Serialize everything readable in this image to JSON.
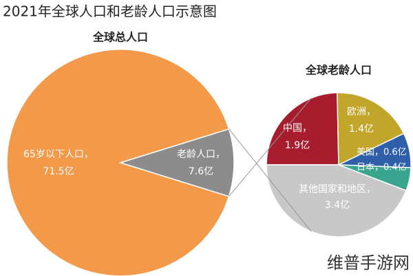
{
  "chart_data": [
    {
      "type": "pie",
      "title": "2021年全球人口和老龄人口示意图",
      "subtitle": "全球总人口",
      "categories": [
        "65岁以下人口，",
        "老龄人口，"
      ],
      "values": [
        71.5,
        7.6
      ],
      "value_labels": [
        "71.5亿",
        "7.6亿"
      ],
      "colors": [
        "#f39a4a",
        "#8c8c8c"
      ]
    },
    {
      "type": "pie",
      "title": "全球老龄人口",
      "categories": [
        "中国，",
        "欧洲，",
        "美国，",
        "日本，",
        "其他国家和地区，"
      ],
      "values": [
        1.9,
        1.4,
        0.6,
        0.4,
        3.4
      ],
      "value_labels": [
        "1.9亿",
        "1.4亿",
        "0.6亿",
        "0.4亿",
        "3.4亿"
      ],
      "colors": [
        "#a71d2e",
        "#c2a62b",
        "#2f5fa8",
        "#3aa58f",
        "#c8c8c8"
      ]
    }
  ],
  "watermark": "维普手游网"
}
